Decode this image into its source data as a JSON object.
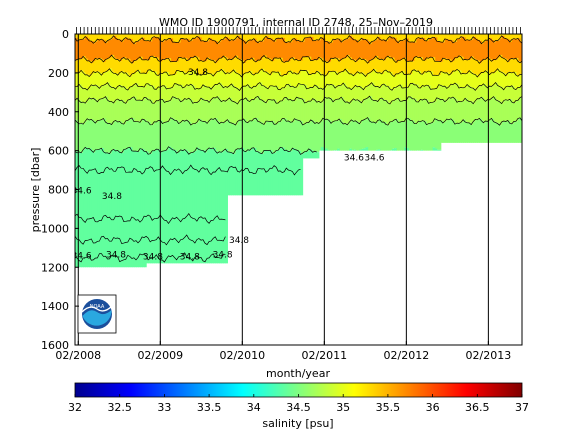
{
  "chart_data": {
    "type": "heatmap",
    "title": "WMO ID 1900791, internal ID 2748, 25–Nov–2019",
    "xlabel": "month/year",
    "ylabel": "pressure [dbar]",
    "colorbar_label": "salinity [psu]",
    "x_start": "2008-02",
    "x_end": "2013-06",
    "x_ticks": [
      {
        "label": "02/2008",
        "t": 2008.09
      },
      {
        "label": "02/2009",
        "t": 2009.09
      },
      {
        "label": "02/2010",
        "t": 2010.09
      },
      {
        "label": "02/2011",
        "t": 2011.09
      },
      {
        "label": "02/2012",
        "t": 2012.09
      },
      {
        "label": "02/2013",
        "t": 2013.09
      }
    ],
    "xlim": [
      2008.05,
      2013.5
    ],
    "ylim": [
      1600,
      0
    ],
    "y_ticks": [
      0,
      200,
      400,
      600,
      800,
      1000,
      1200,
      1400,
      1600
    ],
    "colorbar": {
      "min": 32,
      "max": 37,
      "ticks": [
        "32",
        "32.5",
        "33",
        "33.5",
        "34",
        "34.5",
        "35",
        "35.5",
        "36",
        "36.5",
        "37"
      ],
      "colors": [
        "#00008f",
        "#0000ff",
        "#0080ff",
        "#00ffff",
        "#80ff80",
        "#ffff00",
        "#ff8000",
        "#ff0000",
        "#800000"
      ]
    },
    "profile_depth_segments": [
      {
        "t0": 2008.05,
        "t1": 2008.9,
        "max_pressure": 1200
      },
      {
        "t0": 2008.9,
        "t1": 2009.9,
        "max_pressure": 1180
      },
      {
        "t0": 2009.9,
        "t1": 2010.8,
        "max_pressure": 830
      },
      {
        "t0": 2010.8,
        "t1": 2011.0,
        "max_pressure": 640
      },
      {
        "t0": 2011.0,
        "t1": 2012.5,
        "max_pressure": 600
      },
      {
        "t0": 2012.5,
        "t1": 2013.5,
        "max_pressure": 560
      }
    ],
    "salinity_layers": [
      {
        "from_pressure": 0,
        "to_pressure": 30,
        "salinity": 35.3
      },
      {
        "from_pressure": 30,
        "to_pressure": 130,
        "salinity": 35.7
      },
      {
        "from_pressure": 130,
        "to_pressure": 200,
        "salinity": 35.3
      },
      {
        "from_pressure": 200,
        "to_pressure": 270,
        "salinity": 35.0
      },
      {
        "from_pressure": 270,
        "to_pressure": 340,
        "salinity": 34.85
      },
      {
        "from_pressure": 340,
        "to_pressure": 450,
        "salinity": 34.7
      },
      {
        "from_pressure": 450,
        "to_pressure": 600,
        "salinity": 34.55
      },
      {
        "from_pressure": 600,
        "to_pressure": 1200,
        "salinity": 34.35
      }
    ],
    "contour_levels_psu": [
      34.6,
      34.8,
      35.0,
      35.2,
      35.4,
      35.6,
      35.8
    ],
    "contour_labels": [
      {
        "text": "34.8",
        "t": 2009.55,
        "p": 210
      },
      {
        "text": "34.6",
        "t": 2008.13,
        "p": 820
      },
      {
        "text": "34.8",
        "t": 2008.5,
        "p": 850
      },
      {
        "text": "34.8",
        "t": 2010.05,
        "p": 1075
      },
      {
        "text": "34.6",
        "t": 2008.13,
        "p": 1155
      },
      {
        "text": "34.8",
        "t": 2008.55,
        "p": 1150
      },
      {
        "text": "34.8",
        "t": 2009.0,
        "p": 1160
      },
      {
        "text": "34.8",
        "t": 2009.45,
        "p": 1160
      },
      {
        "text": "34.8",
        "t": 2009.85,
        "p": 1150
      },
      {
        "text": "34.6",
        "t": 2011.45,
        "p": 650
      },
      {
        "text": "34.6",
        "t": 2011.7,
        "p": 650
      }
    ],
    "grid": true,
    "logo": "NOAA"
  }
}
